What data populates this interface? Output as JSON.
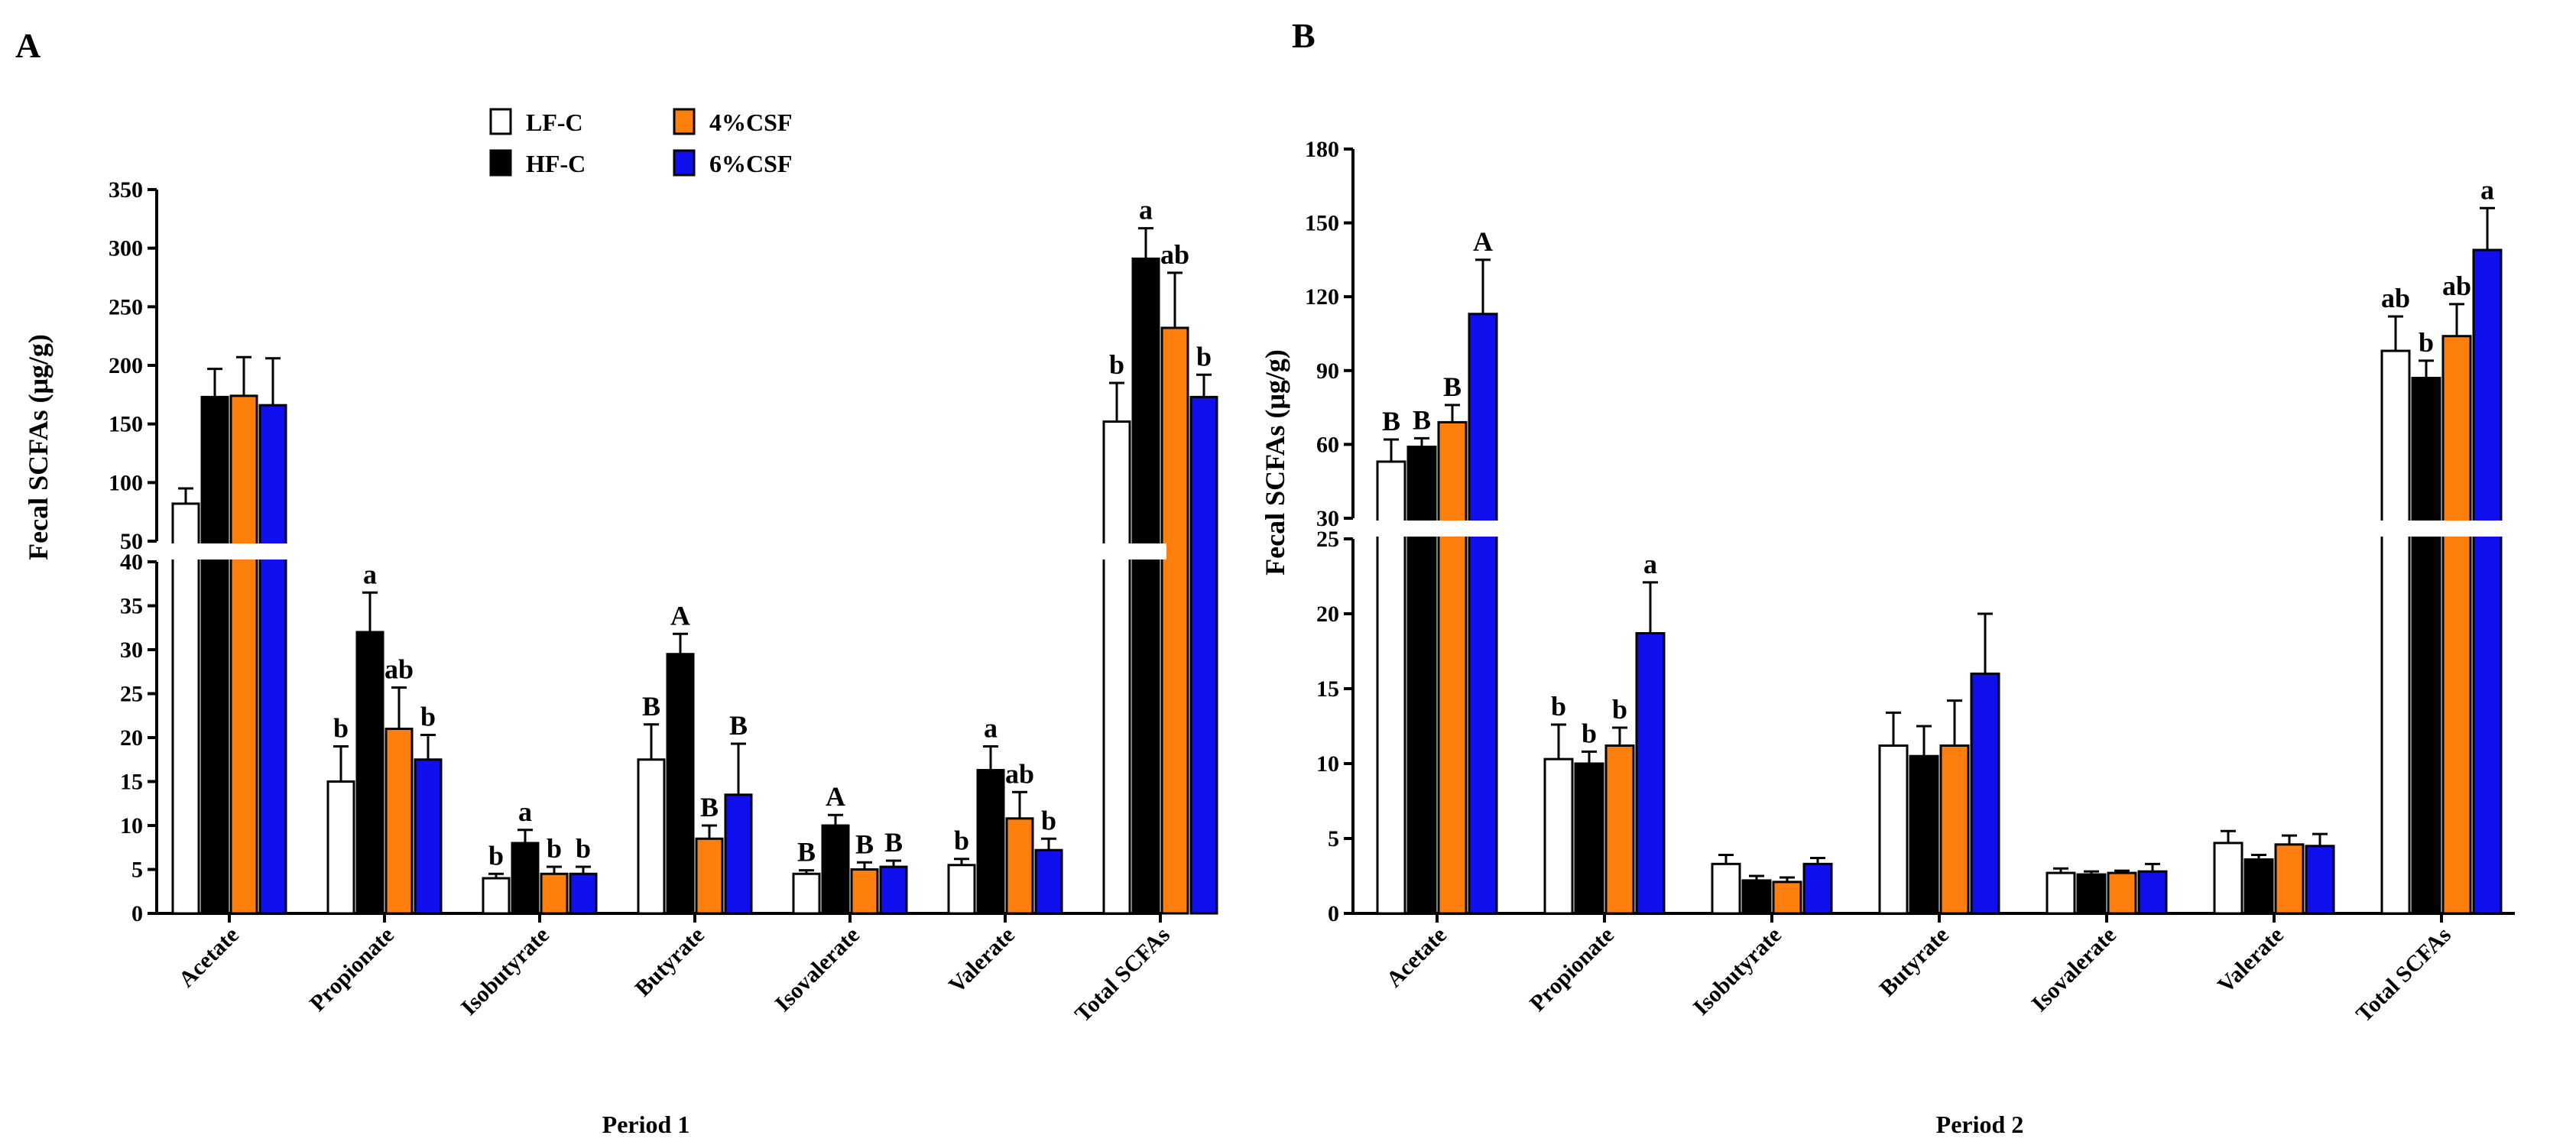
{
  "colors": {
    "LF-C": "#ffffff",
    "HF-C": "#000000",
    "4%CSF": "#ff7f0e",
    "6%CSF": "#1010ee",
    "axis": "#000000"
  },
  "legend": {
    "entries": [
      "LF-C",
      "HF-C",
      "4%CSF",
      "6%CSF"
    ]
  },
  "chart_data": [
    {
      "panel": "A",
      "type": "bar",
      "title": "",
      "xlabel": "Period 1",
      "ylabel": "Fecal SCFAs (μg/g)",
      "categories": [
        "Acetate",
        "Propionate",
        "Isobutyrate",
        "Butyrate",
        "Isovalerate",
        "Valerate",
        "Total SCFAs"
      ],
      "broken_axis": {
        "lower_range": [
          0,
          40
        ],
        "upper_range": [
          50,
          350
        ],
        "lower_ticks": [
          0,
          5,
          10,
          15,
          20,
          25,
          30,
          35,
          40
        ],
        "upper_ticks": [
          50,
          100,
          150,
          200,
          250,
          300,
          350
        ]
      },
      "series": [
        {
          "name": "LF-C",
          "values": [
            82,
            15,
            4,
            17.5,
            4.5,
            5.5,
            152
          ],
          "errors": [
            13,
            4,
            0.5,
            4,
            0.4,
            0.7,
            33
          ]
        },
        {
          "name": "HF-C",
          "values": [
            173,
            32,
            8,
            29.5,
            10,
            16.3,
            291
          ],
          "errors": [
            24,
            4.5,
            1.5,
            2.3,
            1.2,
            2.7,
            26
          ]
        },
        {
          "name": "4%CSF",
          "values": [
            174,
            21,
            4.5,
            8.5,
            5,
            10.8,
            232
          ],
          "errors": [
            33,
            4.7,
            0.8,
            1.5,
            0.8,
            3,
            47
          ]
        },
        {
          "name": "6%CSF",
          "values": [
            166,
            17.5,
            4.5,
            13.5,
            5.3,
            7.2,
            173
          ],
          "errors": [
            40,
            2.8,
            0.8,
            5.8,
            0.7,
            1.3,
            19
          ]
        }
      ],
      "significance": [
        [
          "",
          "b",
          "b",
          "B",
          "B",
          "b",
          "b"
        ],
        [
          "",
          "a",
          "a",
          "A",
          "A",
          "a",
          "a"
        ],
        [
          "",
          "ab",
          "b",
          "B",
          "B",
          "ab",
          "ab"
        ],
        [
          "",
          "b",
          "b",
          "B",
          "B",
          "b",
          "b"
        ]
      ]
    },
    {
      "panel": "B",
      "type": "bar",
      "title": "",
      "xlabel": "Period 2",
      "ylabel": "Fecal SCFAs (μg/g)",
      "categories": [
        "Acetate",
        "Propionate",
        "Isobutyrate",
        "Butyrate",
        "Isovalerate",
        "Valerate",
        "Total SCFAs"
      ],
      "broken_axis": {
        "lower_range": [
          0,
          25
        ],
        "upper_range": [
          30,
          180
        ],
        "lower_ticks": [
          0,
          5,
          10,
          15,
          20,
          25
        ],
        "upper_ticks": [
          30,
          60,
          90,
          120,
          150,
          180
        ]
      },
      "series": [
        {
          "name": "LF-C",
          "values": [
            53,
            10.3,
            3.3,
            11.2,
            2.7,
            4.7,
            98
          ],
          "errors": [
            9,
            2.3,
            0.6,
            2.2,
            0.3,
            0.8,
            14
          ]
        },
        {
          "name": "HF-C",
          "values": [
            59,
            10,
            2.2,
            10.5,
            2.6,
            3.6,
            87
          ],
          "errors": [
            3.5,
            0.8,
            0.3,
            2,
            0.2,
            0.3,
            7
          ]
        },
        {
          "name": "4%CSF",
          "values": [
            69,
            11.2,
            2.1,
            11.2,
            2.7,
            4.6,
            104
          ],
          "errors": [
            7,
            1.2,
            0.3,
            3,
            0.15,
            0.6,
            13
          ]
        },
        {
          "name": "6%CSF",
          "values": [
            113,
            18.7,
            3.3,
            16,
            2.8,
            4.5,
            139
          ],
          "errors": [
            22,
            3.4,
            0.4,
            4,
            0.5,
            0.8,
            17
          ]
        }
      ],
      "significance": [
        [
          "B",
          "b",
          "",
          "",
          "",
          "",
          "ab"
        ],
        [
          "B",
          "b",
          "",
          "",
          "",
          "",
          "b"
        ],
        [
          "B",
          "b",
          "",
          "",
          "",
          "",
          "ab"
        ],
        [
          "A",
          "a",
          "",
          "",
          "",
          "",
          "a"
        ]
      ]
    }
  ]
}
